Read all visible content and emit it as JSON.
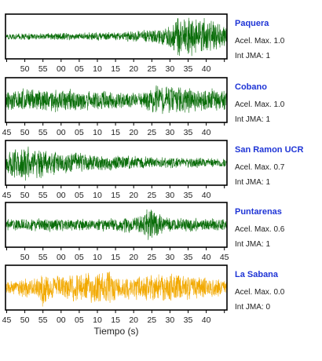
{
  "chart_data": {
    "type": "line",
    "xlabel": "Tiempo (s)",
    "time_tick_labels": [
      "45",
      "50",
      "55",
      "00",
      "05",
      "10",
      "15",
      "20",
      "25",
      "30",
      "35",
      "40",
      "45"
    ],
    "panels": [
      {
        "station": "Paquera",
        "accel_label": "Acel. Max. 1.0",
        "jma_label": "Int JMA: 1",
        "color": "#0a6d0a",
        "tick_labels": [
          "",
          "50",
          "55",
          "00",
          "05",
          "10",
          "15",
          "20",
          "25",
          "30",
          "35",
          "40",
          ""
        ],
        "envelope": [
          [
            0,
            0.15
          ],
          [
            0.3,
            0.2
          ],
          [
            0.5,
            0.22
          ],
          [
            0.7,
            0.4
          ],
          [
            0.78,
            0.95
          ],
          [
            0.85,
            1.0
          ],
          [
            0.92,
            0.9
          ],
          [
            1,
            0.5
          ]
        ]
      },
      {
        "station": "Cobano",
        "accel_label": "Acel. Max. 1.0",
        "jma_label": "Int JMA: 1",
        "color": "#0a6d0a",
        "tick_labels": [
          "45",
          "50",
          "55",
          "00",
          "05",
          "10",
          "15",
          "20",
          "25",
          "30",
          "35",
          "40",
          ""
        ],
        "envelope": [
          [
            0,
            0.6
          ],
          [
            0.15,
            0.7
          ],
          [
            0.3,
            0.55
          ],
          [
            0.5,
            0.45
          ],
          [
            0.6,
            0.35
          ],
          [
            0.72,
            0.95
          ],
          [
            0.78,
            0.7
          ],
          [
            1,
            0.55
          ]
        ]
      },
      {
        "station": "San Ramon UCR",
        "accel_label": "Acel. Max. 0.7",
        "jma_label": "Int JMA: 1",
        "color": "#0a6d0a",
        "tick_labels": [
          "45",
          "50",
          "55",
          "00",
          "05",
          "10",
          "15",
          "20",
          "25",
          "30",
          "35",
          "40",
          ""
        ],
        "envelope": [
          [
            0,
            0.5
          ],
          [
            0.05,
            1.0
          ],
          [
            0.12,
            0.85
          ],
          [
            0.25,
            0.6
          ],
          [
            0.45,
            0.4
          ],
          [
            0.7,
            0.3
          ],
          [
            1,
            0.25
          ]
        ]
      },
      {
        "station": "Puntarenas",
        "accel_label": "Acel. Max. 0.6",
        "jma_label": "Int JMA: 1",
        "color": "#0a6d0a",
        "tick_labels": [
          "",
          "50",
          "55",
          "00",
          "05",
          "10",
          "15",
          "20",
          "25",
          "30",
          "35",
          "40",
          "45"
        ],
        "envelope": [
          [
            0,
            0.3
          ],
          [
            0.2,
            0.35
          ],
          [
            0.4,
            0.3
          ],
          [
            0.6,
            0.45
          ],
          [
            0.66,
            1.0
          ],
          [
            0.72,
            0.4
          ],
          [
            1,
            0.3
          ]
        ]
      },
      {
        "station": "La Sabana",
        "accel_label": "Acel. Max. 0.0",
        "jma_label": "Int JMA: 0",
        "color": "#f2a900",
        "tick_labels": [
          "45",
          "50",
          "55",
          "00",
          "05",
          "10",
          "15",
          "20",
          "25",
          "30",
          "35",
          "40",
          ""
        ],
        "envelope": [
          [
            0,
            0.35
          ],
          [
            0.15,
            0.6
          ],
          [
            0.17,
            1.0
          ],
          [
            0.2,
            0.6
          ],
          [
            0.48,
            0.9
          ],
          [
            0.5,
            0.6
          ],
          [
            0.76,
            0.75
          ],
          [
            1,
            0.4
          ]
        ]
      }
    ]
  }
}
